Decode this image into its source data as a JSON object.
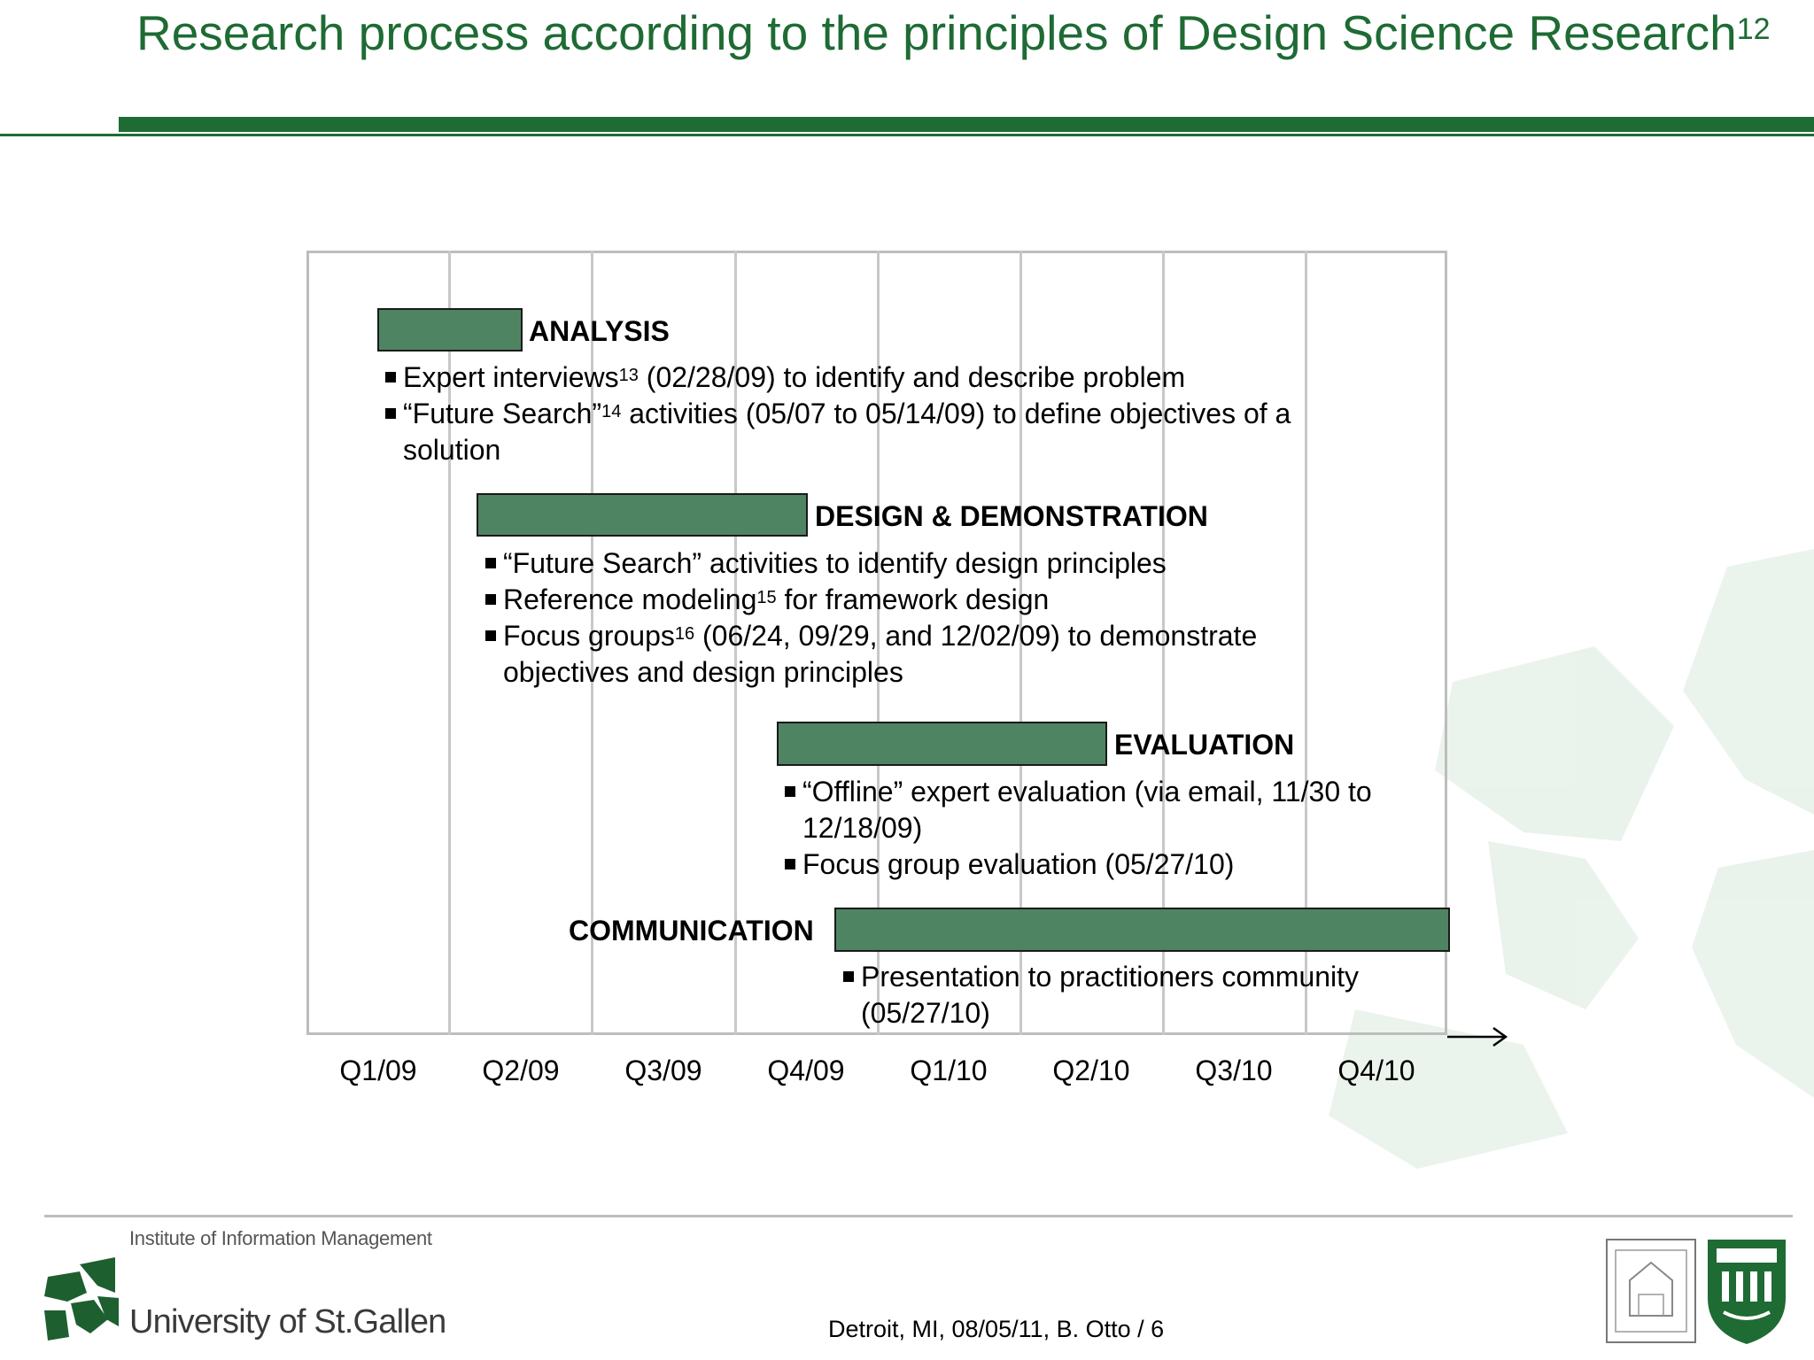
{
  "title": {
    "text": "Research process according to the principles of Design Science Research",
    "sup": "12"
  },
  "timeline": {
    "ticks": [
      "Q1/09",
      "Q2/09",
      "Q3/09",
      "Q4/09",
      "Q1/10",
      "Q2/10",
      "Q3/10",
      "Q4/10"
    ]
  },
  "phases": [
    {
      "label": "ANALYSIS",
      "bullets": [
        {
          "pre": "Expert interviews",
          "sup": "13",
          "post": " (02/28/09) to identify and describe problem"
        },
        {
          "pre": "“Future Search”",
          "sup": "14",
          "post": " activities (05/07 to 05/14/09) to define objectives of a solution"
        }
      ]
    },
    {
      "label": "DESIGN & DEMONSTRATION",
      "bullets": [
        {
          "pre": "“Future Search” activities to identify design principles",
          "sup": "",
          "post": ""
        },
        {
          "pre": "Reference modeling",
          "sup": "15",
          "post": " for framework design"
        },
        {
          "pre": "Focus groups",
          "sup": "16",
          "post": " (06/24, 09/29, and 12/02/09) to demonstrate objectives and design principles"
        }
      ]
    },
    {
      "label": "EVALUATION",
      "bullets": [
        {
          "pre": "“Offline” expert evaluation (via email, 11/30 to 12/18/09)",
          "sup": "",
          "post": ""
        },
        {
          "pre": " Focus group evaluation (05/27/10)",
          "sup": "",
          "post": ""
        }
      ]
    },
    {
      "label": "COMMUNICATION",
      "bullets": [
        {
          "pre": "Presentation to practitioners community (05/27/10)",
          "sup": "",
          "post": ""
        }
      ]
    }
  ],
  "footer": {
    "institute": "Institute of Information Management",
    "university": "University of St.Gallen",
    "note": "Detroit, MI, 08/05/11, B. Otto / 6"
  },
  "colors": {
    "brand_green": "#1e6b34",
    "bar_green": "#4e8462"
  }
}
